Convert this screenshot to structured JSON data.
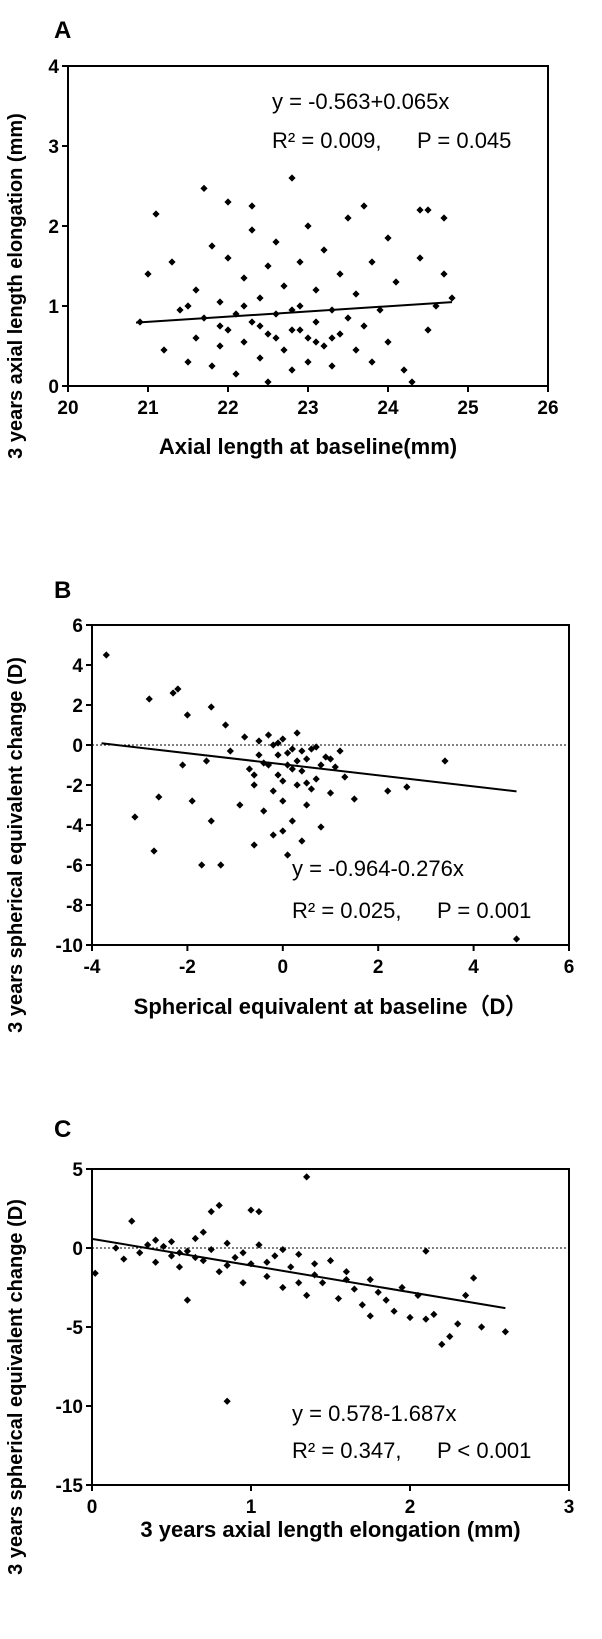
{
  "chart_data": [
    {
      "panel": "A",
      "type": "scatter",
      "xlabel": "Axial length at baseline(mm)",
      "ylabel": "3 years axial length elongation (mm)",
      "xlim": [
        20,
        26
      ],
      "ylim": [
        0,
        4
      ],
      "xticks": [
        "20",
        "21",
        "22",
        "23",
        "24",
        "25",
        "26"
      ],
      "yticks": [
        "0",
        "1",
        "2",
        "3",
        "4"
      ],
      "equation": "y = -0.563+0.065x",
      "r2_text": "R² = 0.009,",
      "p_text": "P = 0.045",
      "fit_line": {
        "intercept": -0.563,
        "slope": 0.065,
        "x_range": [
          20.85,
          24.8
        ]
      },
      "reference_line_y": null,
      "points": [
        [
          21.1,
          2.15
        ],
        [
          21.7,
          2.47
        ],
        [
          22.0,
          2.3
        ],
        [
          22.3,
          2.25
        ],
        [
          22.8,
          2.6
        ],
        [
          23.7,
          2.25
        ],
        [
          24.4,
          2.2
        ],
        [
          24.7,
          2.1
        ],
        [
          24.5,
          2.2
        ],
        [
          20.9,
          0.8
        ],
        [
          21.0,
          1.4
        ],
        [
          21.2,
          0.45
        ],
        [
          21.3,
          1.55
        ],
        [
          21.4,
          0.95
        ],
        [
          21.5,
          0.3
        ],
        [
          21.6,
          0.6
        ],
        [
          21.6,
          1.2
        ],
        [
          21.7,
          0.85
        ],
        [
          21.8,
          1.75
        ],
        [
          21.8,
          0.25
        ],
        [
          21.9,
          0.5
        ],
        [
          21.9,
          1.05
        ],
        [
          22.0,
          0.7
        ],
        [
          22.0,
          1.6
        ],
        [
          22.1,
          0.15
        ],
        [
          22.1,
          0.9
        ],
        [
          22.2,
          1.35
        ],
        [
          22.2,
          0.55
        ],
        [
          22.3,
          0.8
        ],
        [
          22.3,
          1.95
        ],
        [
          22.4,
          0.35
        ],
        [
          22.4,
          1.1
        ],
        [
          22.5,
          0.65
        ],
        [
          22.5,
          1.5
        ],
        [
          22.5,
          0.05
        ],
        [
          22.6,
          0.9
        ],
        [
          22.6,
          1.8
        ],
        [
          22.7,
          0.45
        ],
        [
          22.7,
          1.25
        ],
        [
          22.8,
          0.7
        ],
        [
          22.8,
          0.2
        ],
        [
          22.9,
          1.0
        ],
        [
          22.9,
          1.55
        ],
        [
          23.0,
          0.6
        ],
        [
          23.0,
          2.0
        ],
        [
          23.0,
          0.3
        ],
        [
          23.1,
          1.2
        ],
        [
          23.1,
          0.8
        ],
        [
          23.2,
          0.5
        ],
        [
          23.2,
          1.7
        ],
        [
          23.3,
          0.95
        ],
        [
          23.3,
          0.25
        ],
        [
          23.4,
          1.4
        ],
        [
          23.4,
          0.65
        ],
        [
          23.5,
          0.85
        ],
        [
          23.5,
          2.1
        ],
        [
          23.6,
          0.45
        ],
        [
          23.6,
          1.15
        ],
        [
          23.7,
          0.75
        ],
        [
          23.8,
          1.55
        ],
        [
          23.8,
          0.3
        ],
        [
          23.9,
          0.95
        ],
        [
          24.0,
          1.85
        ],
        [
          24.0,
          0.55
        ],
        [
          24.1,
          1.3
        ],
        [
          24.2,
          0.2
        ],
        [
          24.3,
          0.05
        ],
        [
          24.4,
          1.6
        ],
        [
          24.5,
          0.7
        ],
        [
          24.6,
          1.0
        ],
        [
          24.7,
          1.4
        ],
        [
          24.8,
          1.1
        ],
        [
          21.5,
          1.0
        ],
        [
          21.9,
          0.75
        ],
        [
          22.2,
          1.0
        ],
        [
          22.6,
          0.6
        ],
        [
          22.9,
          0.7
        ],
        [
          23.3,
          0.6
        ],
        [
          22.4,
          0.75
        ],
        [
          22.8,
          0.95
        ],
        [
          23.1,
          0.55
        ]
      ]
    },
    {
      "panel": "B",
      "type": "scatter",
      "xlabel": "Spherical equivalent at baseline（D）",
      "ylabel": "3 years spherical equivalent change (D)",
      "xlim": [
        -4,
        6
      ],
      "ylim": [
        -10,
        6
      ],
      "xticks": [
        "-4",
        "-2",
        "0",
        "2",
        "4",
        "6"
      ],
      "yticks": [
        "-10",
        "-8",
        "-6",
        "-4",
        "-2",
        "0",
        "2",
        "4",
        "6"
      ],
      "equation": "y = -0.964-0.276x",
      "r2_text": "R² = 0.025,",
      "p_text": "P = 0.001",
      "fit_line": {
        "intercept": -0.964,
        "slope": -0.276,
        "x_range": [
          -3.8,
          4.9
        ]
      },
      "reference_line_y": 0,
      "points": [
        [
          -3.7,
          4.5
        ],
        [
          -2.8,
          2.3
        ],
        [
          -2.3,
          2.6
        ],
        [
          -2.2,
          2.8
        ],
        [
          -2.0,
          1.5
        ],
        [
          -1.5,
          1.9
        ],
        [
          -1.2,
          1.0
        ],
        [
          -3.1,
          -3.6
        ],
        [
          -2.7,
          -5.3
        ],
        [
          -1.9,
          -2.8
        ],
        [
          -1.7,
          -6.0
        ],
        [
          -1.5,
          -3.8
        ],
        [
          -1.3,
          -6.0
        ],
        [
          -0.9,
          -3.0
        ],
        [
          -0.6,
          -5.0
        ],
        [
          -2.6,
          -2.6
        ],
        [
          -2.1,
          -1.0
        ],
        [
          -1.6,
          -0.8
        ],
        [
          -1.1,
          -0.3
        ],
        [
          -0.8,
          0.4
        ],
        [
          -0.7,
          -1.2
        ],
        [
          -0.6,
          -2.0
        ],
        [
          -0.5,
          0.2
        ],
        [
          -0.4,
          -3.3
        ],
        [
          -0.3,
          -1.0
        ],
        [
          -0.3,
          0.5
        ],
        [
          -0.2,
          -4.5
        ],
        [
          -0.2,
          -2.3
        ],
        [
          -0.1,
          -0.5
        ],
        [
          -0.1,
          -1.5
        ],
        [
          0.0,
          0.3
        ],
        [
          0.0,
          -2.8
        ],
        [
          0.0,
          -4.3
        ],
        [
          0.1,
          -5.5
        ],
        [
          0.1,
          -1.0
        ],
        [
          0.2,
          -0.2
        ],
        [
          0.2,
          -3.8
        ],
        [
          0.3,
          -2.0
        ],
        [
          0.3,
          0.6
        ],
        [
          0.4,
          -1.3
        ],
        [
          0.4,
          -4.8
        ],
        [
          0.5,
          -0.7
        ],
        [
          0.5,
          -3.0
        ],
        [
          0.6,
          -2.2
        ],
        [
          0.7,
          -0.1
        ],
        [
          0.7,
          -1.7
        ],
        [
          0.8,
          -4.1
        ],
        [
          0.9,
          -0.6
        ],
        [
          1.0,
          -2.4
        ],
        [
          1.1,
          -1.1
        ],
        [
          1.2,
          -0.3
        ],
        [
          1.3,
          -1.6
        ],
        [
          1.5,
          -2.7
        ],
        [
          2.2,
          -2.3
        ],
        [
          2.6,
          -2.1
        ],
        [
          3.4,
          -0.8
        ],
        [
          4.9,
          -9.7
        ],
        [
          -0.5,
          -0.5
        ],
        [
          -0.2,
          0.0
        ],
        [
          0.1,
          -0.4
        ],
        [
          0.3,
          -0.8
        ],
        [
          0.6,
          -0.2
        ],
        [
          -0.4,
          -0.9
        ],
        [
          0.0,
          -1.8
        ],
        [
          0.4,
          -0.3
        ],
        [
          0.8,
          -1.0
        ],
        [
          -0.1,
          0.1
        ],
        [
          0.2,
          -1.2
        ],
        [
          -0.6,
          -1.5
        ],
        [
          0.5,
          -1.9
        ],
        [
          1.0,
          -0.7
        ]
      ]
    },
    {
      "panel": "C",
      "type": "scatter",
      "xlabel": "3 years axial length elongation (mm)",
      "ylabel": "3 years spherical equivalent change (D)",
      "xlim": [
        0,
        3
      ],
      "ylim": [
        -15,
        5
      ],
      "xticks": [
        "0",
        "1",
        "2",
        "3"
      ],
      "yticks": [
        "-15",
        "-10",
        "-5",
        "0",
        "5"
      ],
      "equation": "y = 0.578-1.687x",
      "r2_text": "R² = 0.347,",
      "p_text": "P < 0.001",
      "fit_line": {
        "intercept": 0.578,
        "slope": -1.687,
        "x_range": [
          0.0,
          2.6
        ]
      },
      "reference_line_y": 0,
      "points": [
        [
          0.02,
          -1.6
        ],
        [
          0.25,
          1.7
        ],
        [
          0.4,
          0.5
        ],
        [
          0.6,
          -3.3
        ],
        [
          0.7,
          1.0
        ],
        [
          0.75,
          2.3
        ],
        [
          0.8,
          2.7
        ],
        [
          0.85,
          -9.7
        ],
        [
          1.0,
          2.4
        ],
        [
          1.05,
          2.3
        ],
        [
          1.35,
          4.5
        ],
        [
          0.15,
          0.0
        ],
        [
          0.2,
          -0.7
        ],
        [
          0.3,
          -0.3
        ],
        [
          0.35,
          0.2
        ],
        [
          0.4,
          -0.9
        ],
        [
          0.45,
          0.1
        ],
        [
          0.5,
          -0.5
        ],
        [
          0.5,
          0.4
        ],
        [
          0.55,
          -1.2
        ],
        [
          0.6,
          -0.2
        ],
        [
          0.65,
          0.6
        ],
        [
          0.7,
          -0.8
        ],
        [
          0.75,
          -0.1
        ],
        [
          0.8,
          -1.5
        ],
        [
          0.85,
          0.3
        ],
        [
          0.9,
          -0.6
        ],
        [
          0.95,
          -2.2
        ],
        [
          1.0,
          -1.0
        ],
        [
          1.05,
          0.2
        ],
        [
          1.1,
          -1.8
        ],
        [
          1.15,
          -0.5
        ],
        [
          1.2,
          -2.5
        ],
        [
          1.25,
          -1.2
        ],
        [
          1.3,
          -0.4
        ],
        [
          1.35,
          -3.0
        ],
        [
          1.4,
          -1.7
        ],
        [
          1.45,
          -2.2
        ],
        [
          1.5,
          -0.8
        ],
        [
          1.55,
          -3.2
        ],
        [
          1.6,
          -1.5
        ],
        [
          1.65,
          -2.6
        ],
        [
          1.7,
          -3.6
        ],
        [
          1.75,
          -2.0
        ],
        [
          1.8,
          -2.8
        ],
        [
          1.85,
          -3.3
        ],
        [
          1.9,
          -4.0
        ],
        [
          1.95,
          -2.5
        ],
        [
          2.0,
          -4.4
        ],
        [
          2.05,
          -3.0
        ],
        [
          2.1,
          -0.2
        ],
        [
          2.15,
          -4.2
        ],
        [
          2.2,
          -6.1
        ],
        [
          2.25,
          -5.6
        ],
        [
          2.3,
          -4.8
        ],
        [
          2.35,
          -3.0
        ],
        [
          2.4,
          -1.9
        ],
        [
          2.45,
          -5.0
        ],
        [
          2.6,
          -5.3
        ],
        [
          1.4,
          -1.0
        ],
        [
          0.55,
          -0.3
        ],
        [
          0.65,
          -0.6
        ],
        [
          1.1,
          -0.9
        ],
        [
          1.6,
          -2.0
        ],
        [
          1.2,
          -0.1
        ],
        [
          0.95,
          -0.3
        ],
        [
          1.75,
          -4.3
        ],
        [
          2.1,
          -4.5
        ],
        [
          1.3,
          -2.2
        ],
        [
          0.85,
          -1.1
        ]
      ]
    }
  ]
}
